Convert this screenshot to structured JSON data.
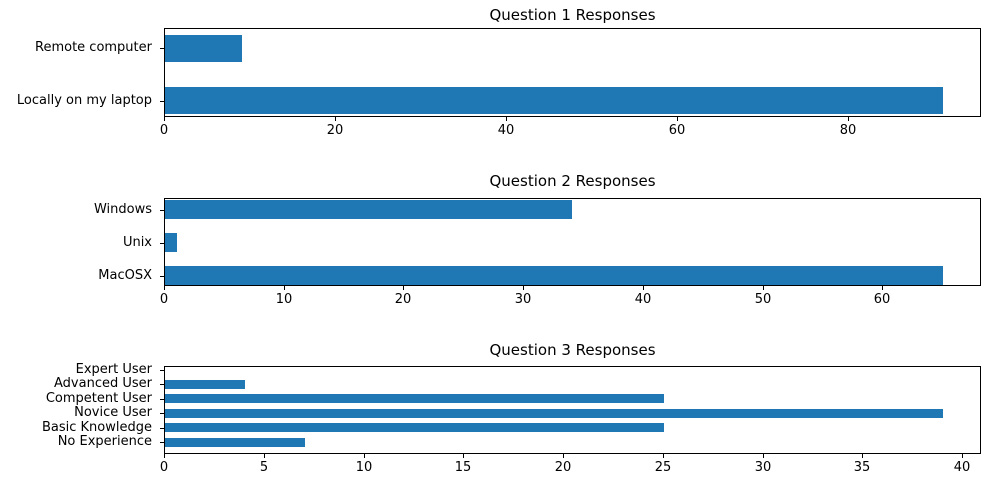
{
  "figure": {
    "background": "#ffffff",
    "text_color": "#000000",
    "axis_color": "#000000"
  },
  "chart_data": [
    {
      "type": "bar",
      "orientation": "horizontal",
      "title": "Question 1 Responses",
      "categories": [
        "Remote computer",
        "Locally on my laptop"
      ],
      "values": [
        9,
        91
      ],
      "xlabel": "",
      "ylabel": "",
      "xlim": [
        0,
        95.55
      ],
      "xticks": [
        0,
        20,
        40,
        60,
        80
      ],
      "bar_color": "#1f77b4",
      "grid": false,
      "legend": false
    },
    {
      "type": "bar",
      "orientation": "horizontal",
      "title": "Question 2 Responses",
      "categories": [
        "Windows",
        "Unix",
        "MacOSX"
      ],
      "values": [
        34,
        1,
        65
      ],
      "xlabel": "",
      "ylabel": "",
      "xlim": [
        0,
        68.25
      ],
      "xticks": [
        0,
        10,
        20,
        30,
        40,
        50,
        60
      ],
      "bar_color": "#1f77b4",
      "grid": false,
      "legend": false
    },
    {
      "type": "bar",
      "orientation": "horizontal",
      "title": "Question 3 Responses",
      "categories": [
        "Expert User",
        "Advanced User",
        "Competent User",
        "Novice User",
        "Basic Knowledge",
        "No Experience"
      ],
      "values": [
        0,
        4,
        25,
        39,
        25,
        7
      ],
      "xlabel": "",
      "ylabel": "",
      "xlim": [
        0,
        40.95
      ],
      "xticks": [
        0,
        5,
        10,
        15,
        20,
        25,
        30,
        35,
        40
      ],
      "bar_color": "#1f77b4",
      "grid": false,
      "legend": false
    }
  ]
}
